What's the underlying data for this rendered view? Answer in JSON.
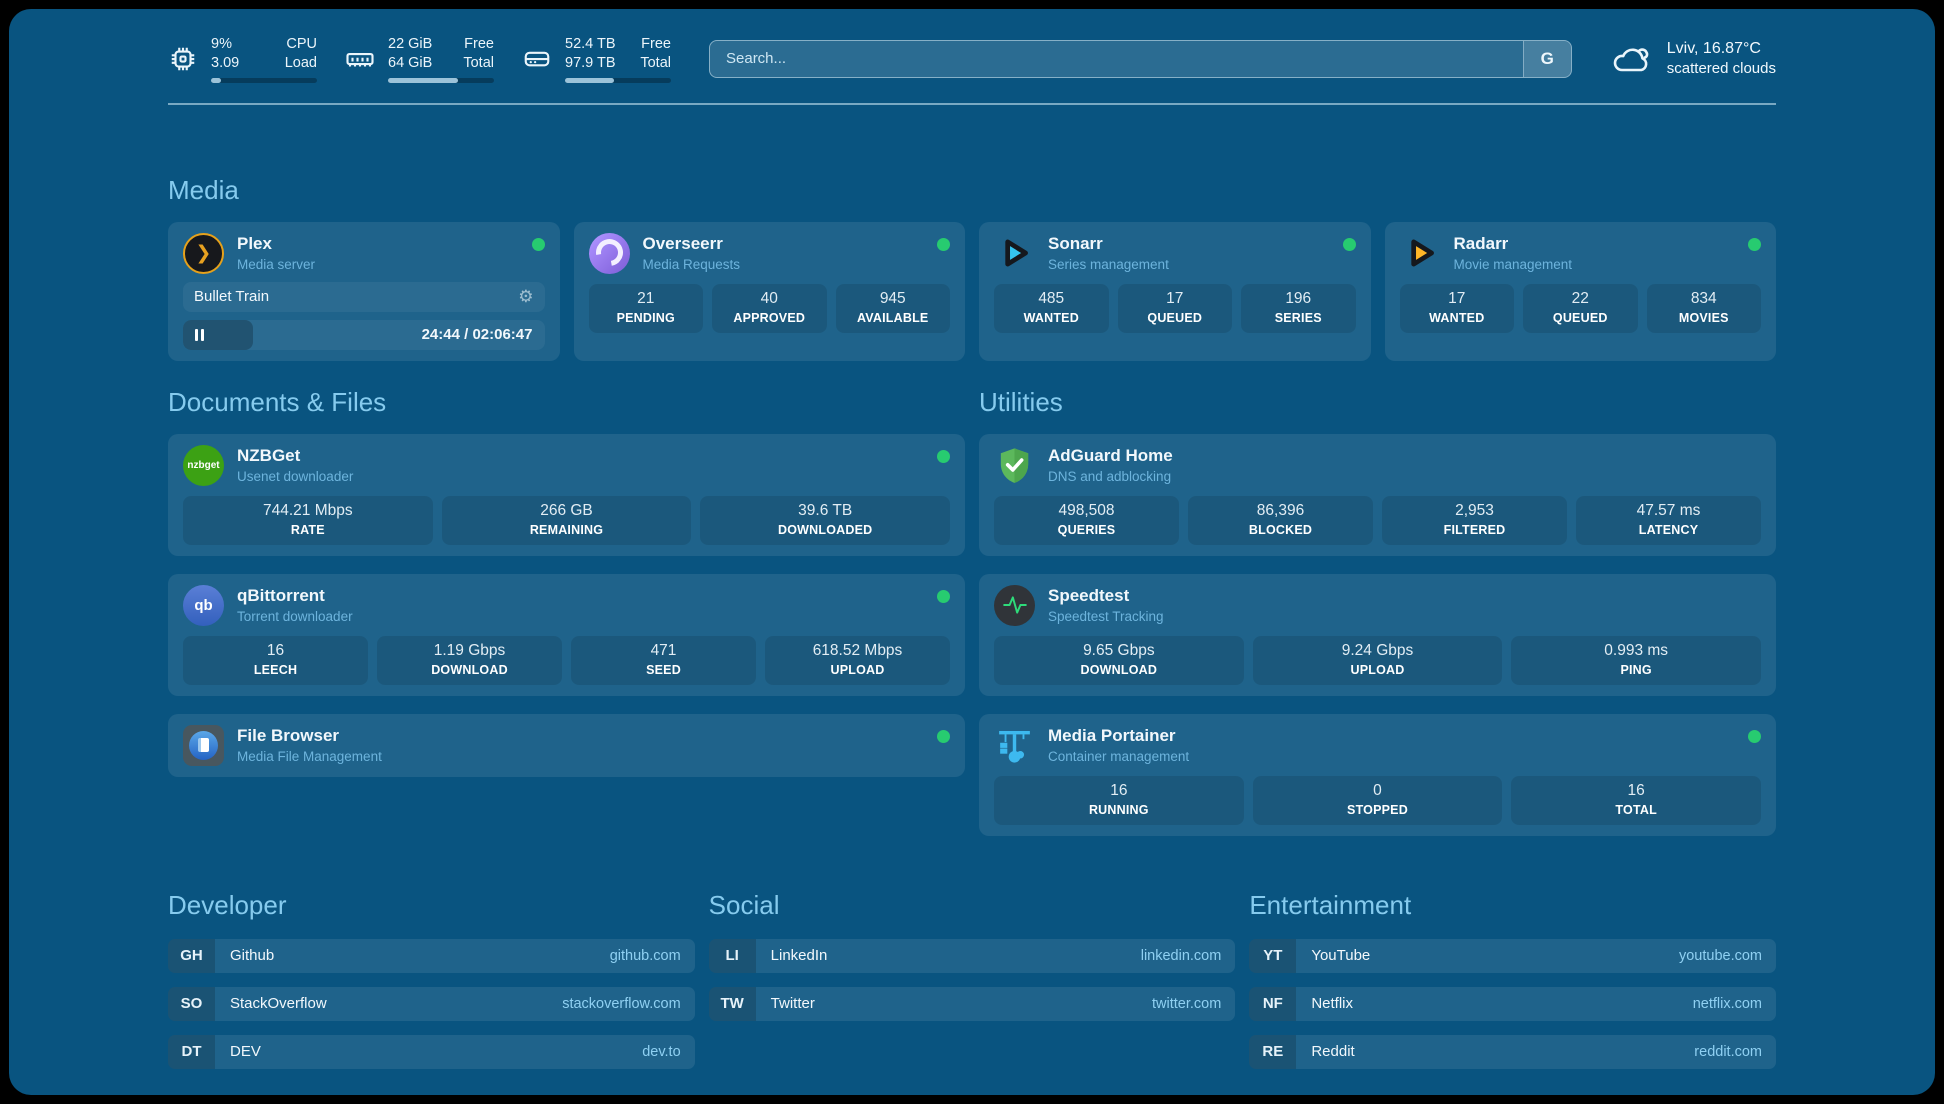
{
  "header": {
    "stats": [
      {
        "name": "cpu",
        "line1": "9%",
        "line2": "3.09",
        "label1": "CPU",
        "label2": "Load",
        "progress_pct": 9
      },
      {
        "name": "memory",
        "line1": "22 GiB",
        "line2": "64 GiB",
        "label1": "Free",
        "label2": "Total",
        "progress_pct": 66
      },
      {
        "name": "storage",
        "line1": "52.4 TB",
        "line2": "97.9 TB",
        "label1": "Free",
        "label2": "Total",
        "progress_pct": 46
      }
    ],
    "search": {
      "placeholder": "Search...",
      "button": "G"
    },
    "weather": {
      "line1": "Lviv, 16.87°C",
      "line2": "scattered clouds"
    }
  },
  "sections": {
    "media": {
      "title": "Media"
    },
    "documents": {
      "title": "Documents & Files"
    },
    "utilities": {
      "title": "Utilities"
    },
    "developer": {
      "title": "Developer"
    },
    "social": {
      "title": "Social"
    },
    "entertainment": {
      "title": "Entertainment"
    }
  },
  "apps": {
    "plex": {
      "name": "Plex",
      "subtitle": "Media server",
      "now_playing": "Bullet Train",
      "time": "24:44 / 02:06:47",
      "progress_pct": 19.5
    },
    "overseerr": {
      "name": "Overseerr",
      "subtitle": "Media Requests",
      "stats": [
        {
          "value": "21",
          "label": "PENDING"
        },
        {
          "value": "40",
          "label": "APPROVED"
        },
        {
          "value": "945",
          "label": "AVAILABLE"
        }
      ]
    },
    "sonarr": {
      "name": "Sonarr",
      "subtitle": "Series management",
      "stats": [
        {
          "value": "485",
          "label": "WANTED"
        },
        {
          "value": "17",
          "label": "QUEUED"
        },
        {
          "value": "196",
          "label": "SERIES"
        }
      ]
    },
    "radarr": {
      "name": "Radarr",
      "subtitle": "Movie management",
      "stats": [
        {
          "value": "17",
          "label": "WANTED"
        },
        {
          "value": "22",
          "label": "QUEUED"
        },
        {
          "value": "834",
          "label": "MOVIES"
        }
      ]
    },
    "nzbget": {
      "name": "NZBGet",
      "subtitle": "Usenet downloader",
      "stats": [
        {
          "value": "744.21 Mbps",
          "label": "RATE"
        },
        {
          "value": "266 GB",
          "label": "REMAINING"
        },
        {
          "value": "39.6 TB",
          "label": "DOWNLOADED"
        }
      ]
    },
    "qbittorrent": {
      "name": "qBittorrent",
      "subtitle": "Torrent downloader",
      "stats": [
        {
          "value": "16",
          "label": "LEECH"
        },
        {
          "value": "1.19 Gbps",
          "label": "DOWNLOAD"
        },
        {
          "value": "471",
          "label": "SEED"
        },
        {
          "value": "618.52 Mbps",
          "label": "UPLOAD"
        }
      ]
    },
    "filebrowser": {
      "name": "File Browser",
      "subtitle": "Media File Management"
    },
    "adguard": {
      "name": "AdGuard Home",
      "subtitle": "DNS and adblocking",
      "stats": [
        {
          "value": "498,508",
          "label": "QUERIES"
        },
        {
          "value": "86,396",
          "label": "BLOCKED"
        },
        {
          "value": "2,953",
          "label": "FILTERED"
        },
        {
          "value": "47.57 ms",
          "label": "LATENCY"
        }
      ]
    },
    "speedtest": {
      "name": "Speedtest",
      "subtitle": "Speedtest Tracking",
      "stats": [
        {
          "value": "9.65 Gbps",
          "label": "DOWNLOAD"
        },
        {
          "value": "9.24 Gbps",
          "label": "UPLOAD"
        },
        {
          "value": "0.993 ms",
          "label": "PING"
        }
      ]
    },
    "portainer": {
      "name": "Media Portainer",
      "subtitle": "Container management",
      "stats": [
        {
          "value": "16",
          "label": "RUNNING"
        },
        {
          "value": "0",
          "label": "STOPPED"
        },
        {
          "value": "16",
          "label": "TOTAL"
        }
      ]
    }
  },
  "bookmarks": {
    "developer": [
      {
        "abbr": "GH",
        "name": "Github",
        "url": "github.com"
      },
      {
        "abbr": "SO",
        "name": "StackOverflow",
        "url": "stackoverflow.com"
      },
      {
        "abbr": "DT",
        "name": "DEV",
        "url": "dev.to"
      }
    ],
    "social": [
      {
        "abbr": "LI",
        "name": "LinkedIn",
        "url": "linkedin.com"
      },
      {
        "abbr": "TW",
        "name": "Twitter",
        "url": "twitter.com"
      }
    ],
    "entertainment": [
      {
        "abbr": "YT",
        "name": "YouTube",
        "url": "youtube.com"
      },
      {
        "abbr": "NF",
        "name": "Netflix",
        "url": "netflix.com"
      },
      {
        "abbr": "RE",
        "name": "Reddit",
        "url": "reddit.com"
      }
    ]
  },
  "logos": {
    "nzbget_text": "nzbget",
    "qbittorrent_text": "qb"
  },
  "icons": {
    "plex_chevron": "❯",
    "gear": "⚙"
  },
  "colors": {
    "page_bg": "#095480",
    "status_online": "#27cb70",
    "accent_title": "#86cbee"
  }
}
